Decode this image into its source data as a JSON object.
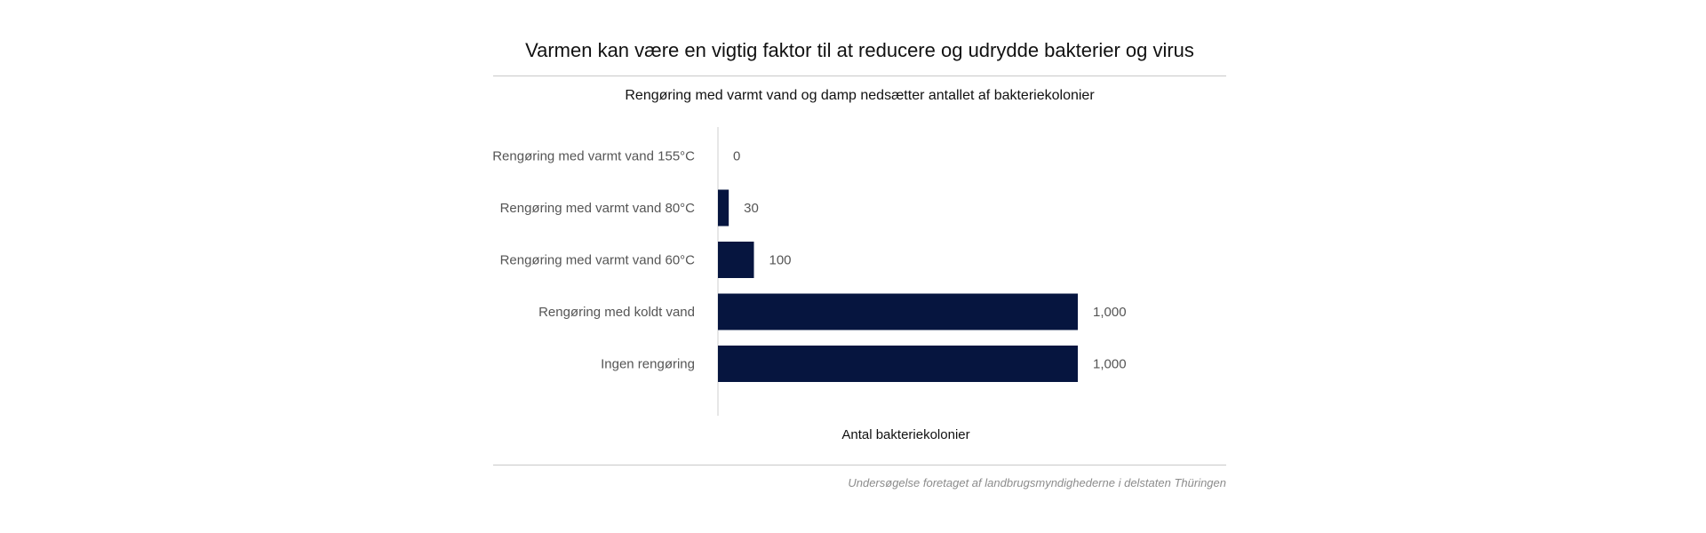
{
  "title": "Varmen kan være en vigtig faktor til at reducere og udrydde bakterier og virus",
  "subtitle": "Rengøring med varmt vand og damp nedsætter antallet af bakteriekolonier",
  "source": "Undersøgelse foretaget af landbrugsmyndighederne i delstaten Thüringen",
  "chart_data": {
    "type": "bar",
    "orientation": "horizontal",
    "categories": [
      "Rengøring med varmt vand 155°C",
      "Rengøring med varmt vand 80°C",
      "Rengøring med varmt vand 60°C",
      "Rengøring med koldt vand",
      "Ingen rengøring"
    ],
    "values": [
      0,
      30,
      100,
      1000,
      1000
    ],
    "value_labels": [
      "0",
      "30",
      "100",
      "1,000",
      "1,000"
    ],
    "xlabel": "Antal bakteriekolonier",
    "ylabel": "",
    "xlim": [
      0,
      1000
    ],
    "grid": false,
    "bar_color": "#06153f",
    "axis_color": "#cfcfcf"
  }
}
